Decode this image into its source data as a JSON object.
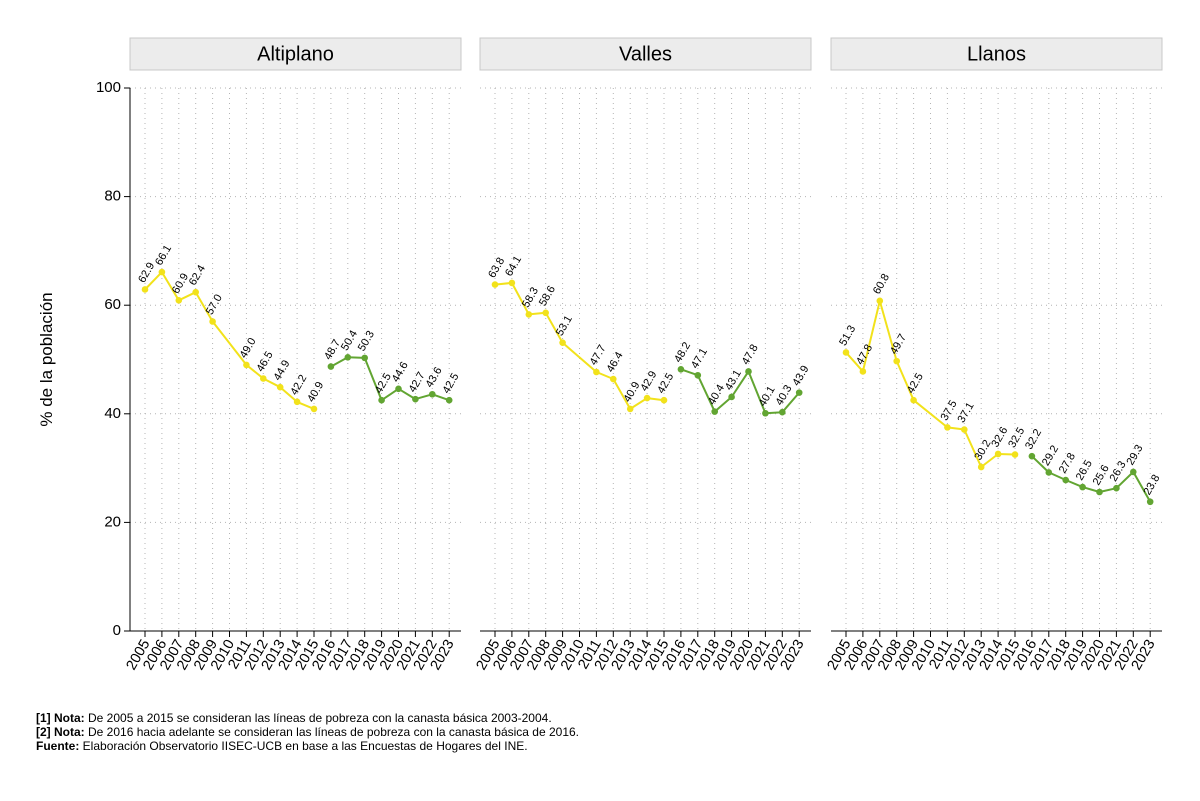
{
  "chart_data": {
    "type": "line",
    "ylabel": "% de la población",
    "ylim": [
      0,
      100
    ],
    "yticks": [
      0,
      20,
      40,
      60,
      80,
      100
    ],
    "years": [
      "2005",
      "2006",
      "2007",
      "2008",
      "2009",
      "2010",
      "2011",
      "2012",
      "2013",
      "2014",
      "2015",
      "2016",
      "2017",
      "2018",
      "2019",
      "2020",
      "2021",
      "2022",
      "2023"
    ],
    "colors": {
      "series_2005_2015": "#f2e21b",
      "series_2016_2023": "#62a532"
    },
    "panels": [
      {
        "title": "Altiplano",
        "series": [
          {
            "years": [
              2005,
              2006,
              2007,
              2008,
              2009,
              2011,
              2012,
              2013,
              2014,
              2015
            ],
            "values": [
              62.9,
              66.1,
              60.9,
              62.4,
              57.0,
              49.0,
              46.5,
              44.9,
              42.2,
              40.9
            ],
            "color": "#f2e21b"
          },
          {
            "years": [
              2016,
              2017,
              2018,
              2019,
              2020,
              2021,
              2022,
              2023
            ],
            "values": [
              48.7,
              50.4,
              50.3,
              42.5,
              44.6,
              42.7,
              43.6,
              42.5
            ],
            "color": "#62a532"
          }
        ]
      },
      {
        "title": "Valles",
        "series": [
          {
            "years": [
              2005,
              2006,
              2007,
              2008,
              2009,
              2011,
              2012,
              2013,
              2014,
              2015
            ],
            "values": [
              63.8,
              64.1,
              58.3,
              58.6,
              53.1,
              47.7,
              46.4,
              40.9,
              42.9,
              42.5
            ],
            "color": "#f2e21b"
          },
          {
            "years": [
              2016,
              2017,
              2018,
              2019,
              2020,
              2021,
              2022,
              2023
            ],
            "values": [
              48.2,
              47.1,
              40.4,
              43.1,
              47.8,
              40.1,
              40.3,
              43.9
            ],
            "color": "#62a532"
          }
        ]
      },
      {
        "title": "Llanos",
        "series": [
          {
            "years": [
              2005,
              2006,
              2007,
              2008,
              2009,
              2011,
              2012,
              2013,
              2014,
              2015
            ],
            "values": [
              51.3,
              47.8,
              60.8,
              49.7,
              42.5,
              37.5,
              37.1,
              30.2,
              32.6,
              32.5
            ],
            "color": "#f2e21b"
          },
          {
            "years": [
              2016,
              2017,
              2018,
              2019,
              2020,
              2021,
              2022,
              2023
            ],
            "values": [
              32.2,
              29.2,
              27.8,
              26.5,
              25.6,
              26.3,
              29.3,
              23.8
            ],
            "color": "#62a532"
          }
        ]
      }
    ]
  },
  "notes": {
    "note1_label": "[1] Nota:",
    "note1_text": " De 2005 a 2015 se consideran las líneas de pobreza con la canasta básica 2003-2004.",
    "note2_label": "[2] Nota:",
    "note2_text": " De 2016 hacia adelante se consideran las líneas de pobreza con la canasta básica de 2016.",
    "source_label": "Fuente:",
    "source_text": " Elaboración Observatorio IISEC-UCB en base a las Encuestas de Hogares del INE."
  }
}
